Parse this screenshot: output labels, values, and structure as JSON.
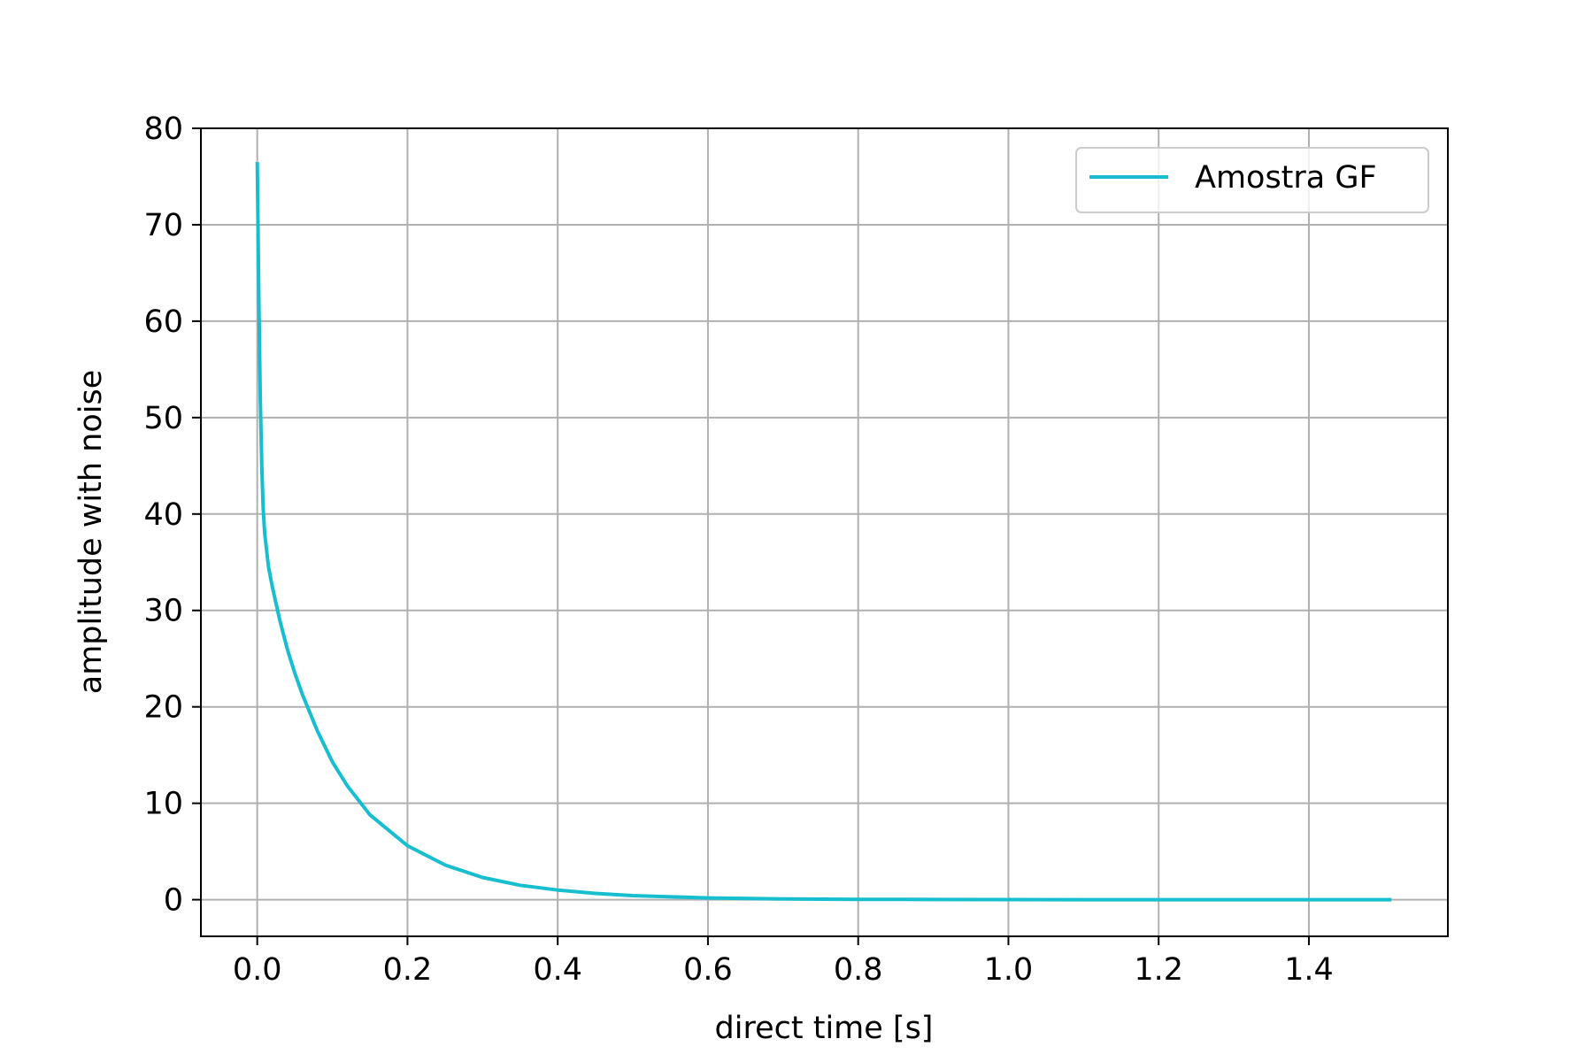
{
  "chart_data": {
    "type": "line",
    "xlabel": "direct time [s]",
    "ylabel": "amplitude with noise",
    "xlim": [
      -0.075,
      1.585
    ],
    "ylim": [
      -3.8,
      80
    ],
    "xticks": [
      0.0,
      0.2,
      0.4,
      0.6,
      0.8,
      1.0,
      1.2,
      1.4
    ],
    "xtick_labels": [
      "0.0",
      "0.2",
      "0.4",
      "0.6",
      "0.8",
      "1.0",
      "1.2",
      "1.4"
    ],
    "yticks": [
      0,
      10,
      20,
      30,
      40,
      50,
      60,
      70,
      80
    ],
    "ytick_labels": [
      "0",
      "10",
      "20",
      "30",
      "40",
      "50",
      "60",
      "70",
      "80"
    ],
    "grid": true,
    "legend_position": "top-right",
    "series": [
      {
        "name": "Amostra GF",
        "color": "#17becf",
        "x": [
          0.0,
          0.002,
          0.004,
          0.006,
          0.008,
          0.01,
          0.015,
          0.02,
          0.03,
          0.04,
          0.05,
          0.06,
          0.08,
          0.1,
          0.12,
          0.15,
          0.2,
          0.25,
          0.3,
          0.35,
          0.4,
          0.45,
          0.5,
          0.6,
          0.7,
          0.8,
          0.9,
          1.0,
          1.1,
          1.2,
          1.3,
          1.4,
          1.51
        ],
        "y": [
          76.5,
          63,
          52,
          45,
          40.5,
          38,
          34.5,
          32.5,
          29,
          26,
          23.5,
          21.3,
          17.5,
          14.3,
          11.8,
          8.8,
          5.6,
          3.6,
          2.3,
          1.5,
          1.0,
          0.65,
          0.42,
          0.18,
          0.08,
          0.035,
          0.015,
          0.007,
          0.003,
          0.002,
          0.001,
          0.0,
          0.0
        ]
      }
    ]
  }
}
